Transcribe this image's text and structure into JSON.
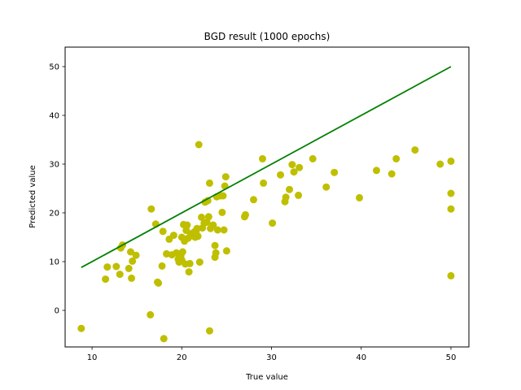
{
  "chart_data": {
    "type": "scatter",
    "title": "BGD result (1000 epochs)",
    "xlabel": "True value",
    "ylabel": "Predicted value",
    "xlim": [
      7,
      52
    ],
    "ylim": [
      -7.5,
      54
    ],
    "xticks": [
      10,
      20,
      30,
      40,
      50
    ],
    "yticks": [
      0,
      10,
      20,
      30,
      40,
      50
    ],
    "grid": false,
    "colors": {
      "points": "#bfbf00",
      "line": "#008000"
    },
    "line": {
      "x": [
        8.8,
        50
      ],
      "y": [
        8.8,
        50
      ]
    },
    "points": [
      [
        8.8,
        -3.7
      ],
      [
        11.5,
        6.4
      ],
      [
        11.7,
        8.9
      ],
      [
        12.7,
        9.0
      ],
      [
        13.1,
        7.4
      ],
      [
        13.2,
        12.8
      ],
      [
        13.4,
        13.4
      ],
      [
        14.1,
        8.6
      ],
      [
        14.3,
        12.0
      ],
      [
        14.4,
        6.6
      ],
      [
        14.5,
        10.1
      ],
      [
        14.9,
        11.3
      ],
      [
        16.5,
        -0.9
      ],
      [
        16.6,
        20.8
      ],
      [
        17.1,
        17.7
      ],
      [
        17.3,
        5.8
      ],
      [
        17.4,
        5.6
      ],
      [
        17.8,
        9.1
      ],
      [
        17.9,
        16.2
      ],
      [
        18.0,
        -5.8
      ],
      [
        18.3,
        11.6
      ],
      [
        18.6,
        14.6
      ],
      [
        18.9,
        11.4
      ],
      [
        19.1,
        15.4
      ],
      [
        19.4,
        11.8
      ],
      [
        19.6,
        10.5
      ],
      [
        19.7,
        9.9
      ],
      [
        19.9,
        11.2
      ],
      [
        20.0,
        10.3
      ],
      [
        20.0,
        15.0
      ],
      [
        20.1,
        12.0
      ],
      [
        20.2,
        17.6
      ],
      [
        20.3,
        14.2
      ],
      [
        20.4,
        9.5
      ],
      [
        20.5,
        16.4
      ],
      [
        20.6,
        17.5
      ],
      [
        20.7,
        14.8
      ],
      [
        20.8,
        7.9
      ],
      [
        20.9,
        9.6
      ],
      [
        21.0,
        15.7
      ],
      [
        21.2,
        15.3
      ],
      [
        21.4,
        16.1
      ],
      [
        21.5,
        15.0
      ],
      [
        21.6,
        16.2
      ],
      [
        21.7,
        16.8
      ],
      [
        21.8,
        15.2
      ],
      [
        21.9,
        34.0
      ],
      [
        22.0,
        9.9
      ],
      [
        22.2,
        19.1
      ],
      [
        22.3,
        16.9
      ],
      [
        22.5,
        17.9
      ],
      [
        22.6,
        22.2
      ],
      [
        22.8,
        18.1
      ],
      [
        22.9,
        22.5
      ],
      [
        23.0,
        19.2
      ],
      [
        23.1,
        26.1
      ],
      [
        23.1,
        -4.2
      ],
      [
        23.2,
        16.8
      ],
      [
        23.5,
        17.5
      ],
      [
        23.7,
        13.3
      ],
      [
        23.7,
        10.9
      ],
      [
        23.8,
        11.8
      ],
      [
        23.9,
        23.3
      ],
      [
        24.0,
        16.5
      ],
      [
        24.3,
        23.5
      ],
      [
        24.5,
        20.1
      ],
      [
        24.6,
        23.5
      ],
      [
        24.7,
        16.5
      ],
      [
        24.8,
        25.5
      ],
      [
        24.9,
        27.4
      ],
      [
        25.0,
        12.2
      ],
      [
        27.0,
        19.2
      ],
      [
        27.1,
        19.6
      ],
      [
        28.0,
        22.7
      ],
      [
        29.0,
        31.1
      ],
      [
        29.1,
        26.1
      ],
      [
        30.1,
        17.9
      ],
      [
        31.0,
        27.8
      ],
      [
        31.5,
        22.3
      ],
      [
        31.6,
        23.2
      ],
      [
        32.0,
        24.8
      ],
      [
        32.3,
        29.9
      ],
      [
        32.5,
        28.4
      ],
      [
        33.0,
        23.6
      ],
      [
        33.1,
        29.3
      ],
      [
        34.6,
        31.1
      ],
      [
        36.1,
        25.3
      ],
      [
        37.0,
        28.3
      ],
      [
        39.8,
        23.1
      ],
      [
        41.7,
        28.7
      ],
      [
        43.4,
        28.0
      ],
      [
        43.9,
        31.1
      ],
      [
        46.0,
        32.9
      ],
      [
        48.8,
        30.0
      ],
      [
        50.0,
        30.6
      ],
      [
        50.0,
        24.0
      ],
      [
        50.0,
        20.8
      ],
      [
        50.0,
        7.1
      ]
    ]
  }
}
